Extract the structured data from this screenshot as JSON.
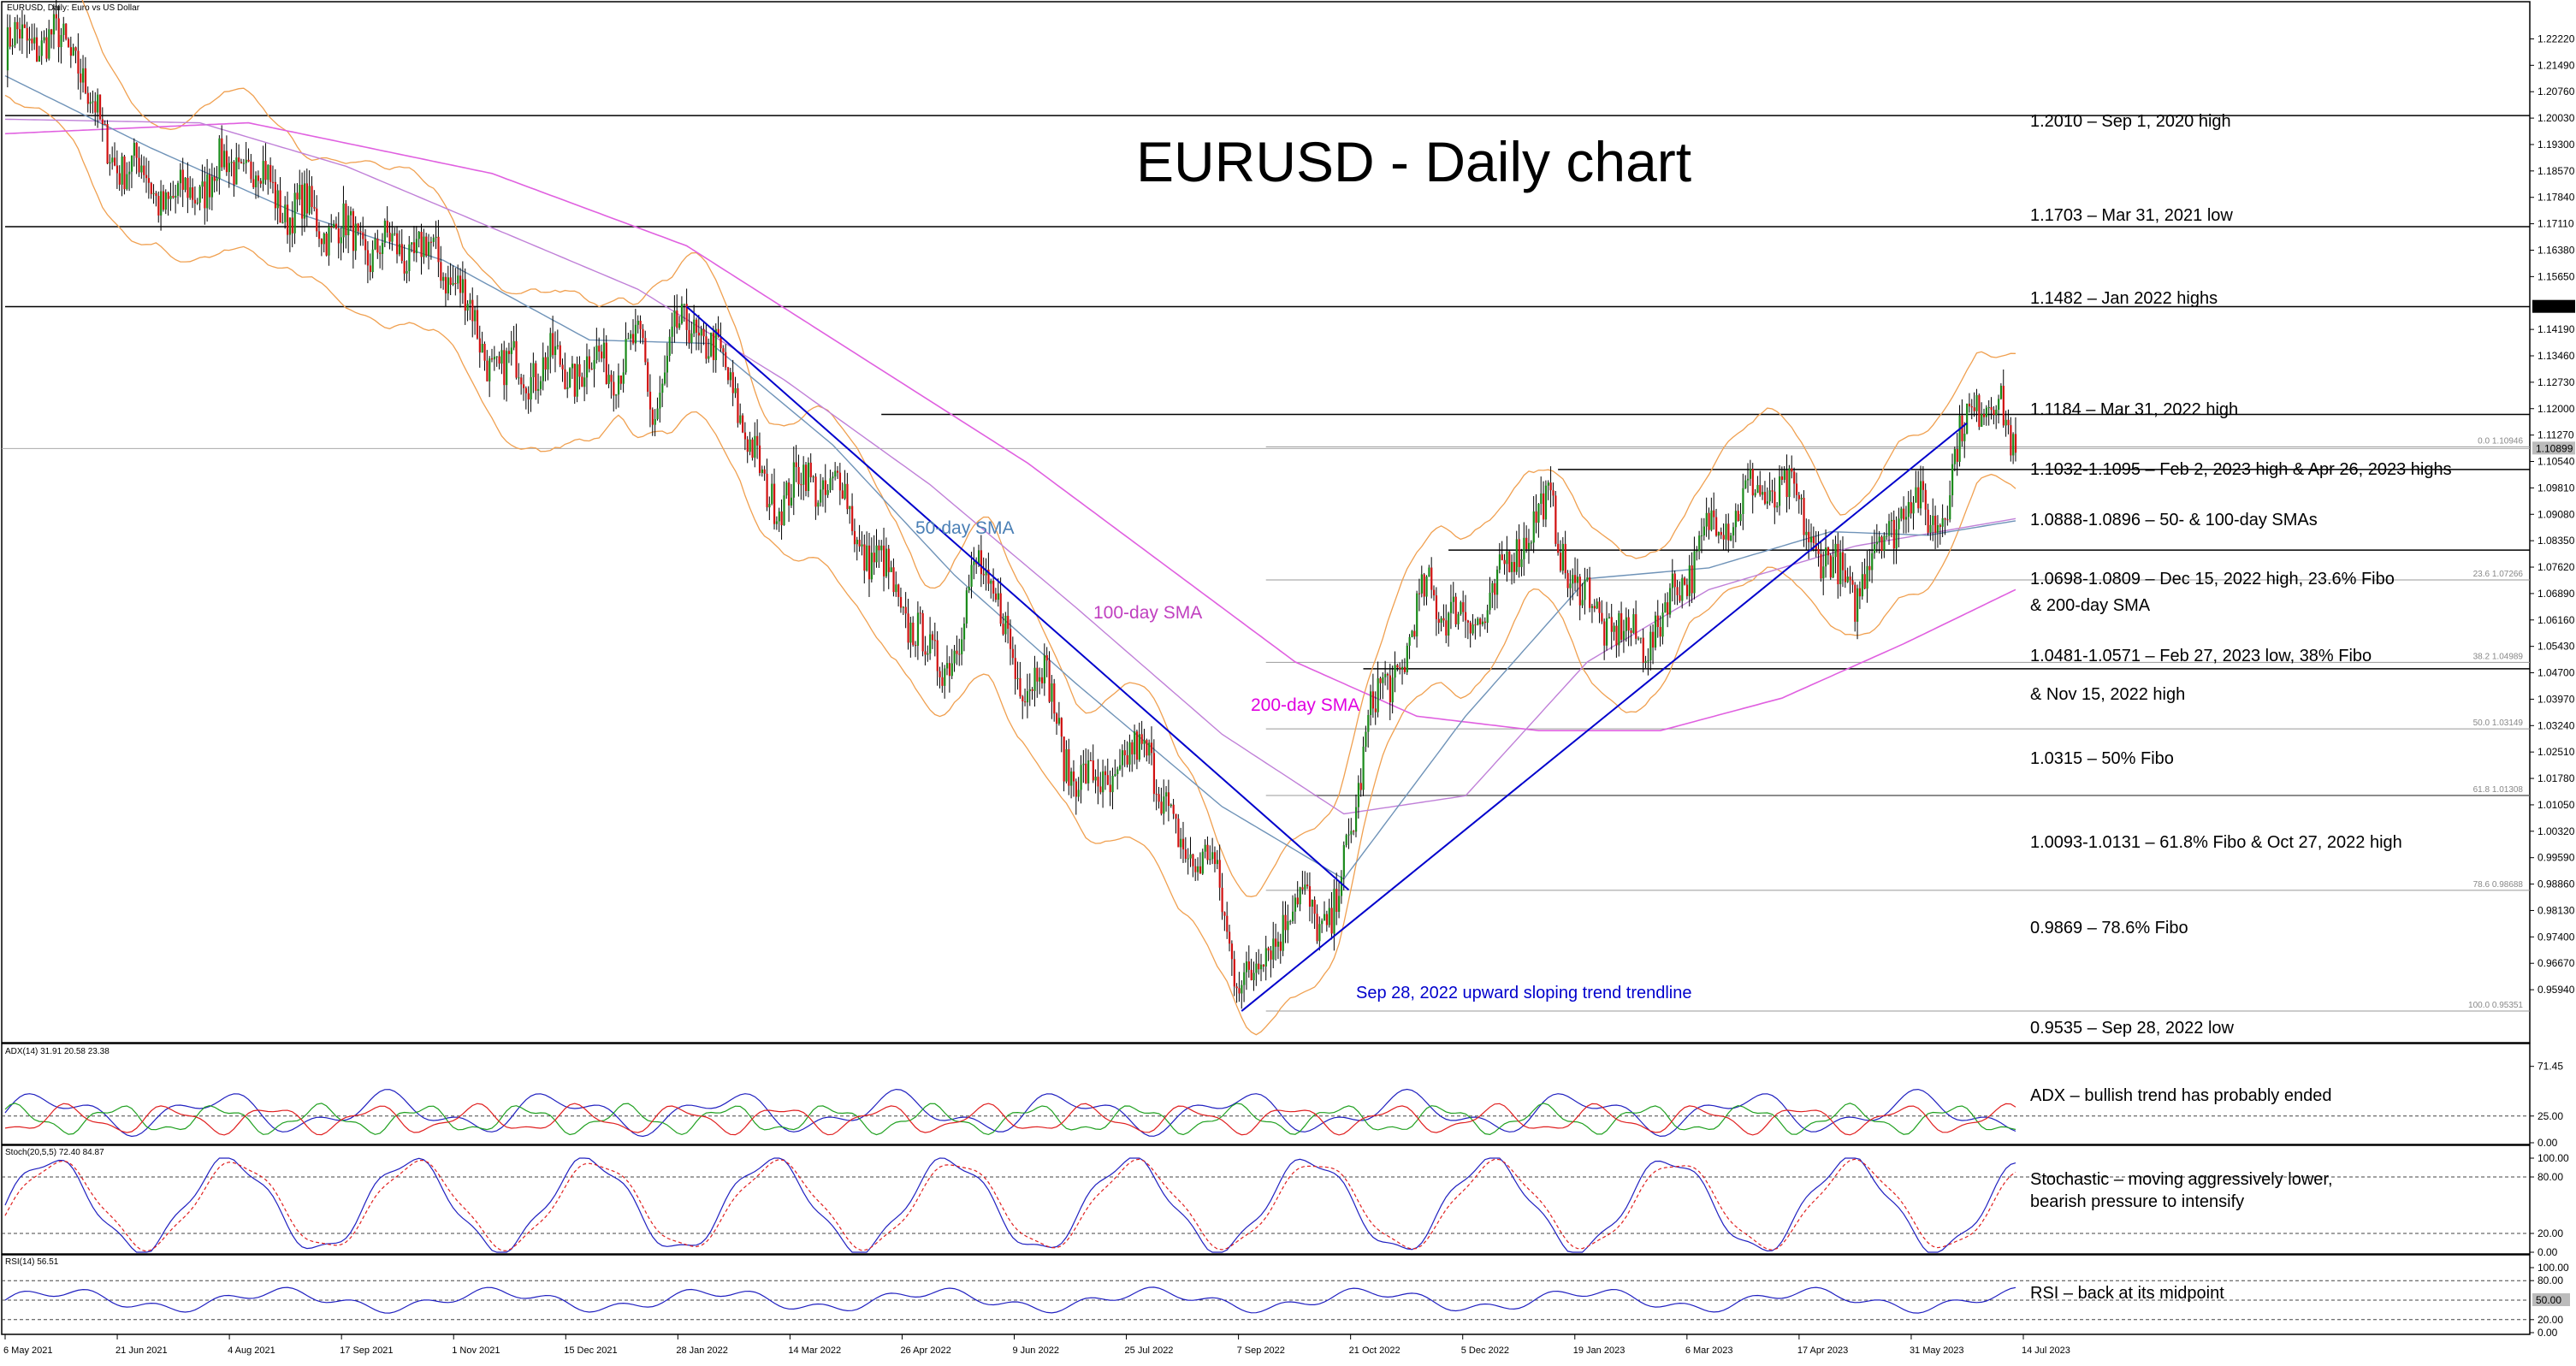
{
  "chart_data": {
    "type": "candlestick",
    "symbol_header": "EURUSD, Daily: Euro vs US Dollar",
    "title": "EURUSD - Daily chart",
    "ylim": [
      0.945,
      1.232
    ],
    "price_ticks": [
      "1.22220",
      "1.21490",
      "1.20760",
      "1.20030",
      "1.19300",
      "1.18570",
      "1.17840",
      "1.17110",
      "1.16380",
      "1.15650",
      "1.14190",
      "1.13460",
      "1.12730",
      "1.12000",
      "1.11270",
      "1.10540",
      "1.09810",
      "1.09080",
      "1.08350",
      "1.07620",
      "1.06890",
      "1.06160",
      "1.05430",
      "1.04700",
      "1.03970",
      "1.03240",
      "1.02510",
      "1.01780",
      "1.01050",
      "1.00320",
      "0.99590",
      "0.98860",
      "0.98130",
      "0.97400",
      "0.96670",
      "0.95940"
    ],
    "highlight_ticks": [
      {
        "label": "1.14815",
        "value": 1.14815
      },
      {
        "label": "1.10899",
        "value": 1.10899
      }
    ],
    "date_ticks": [
      "6 May 2021",
      "21 Jun 2021",
      "4 Aug 2021",
      "17 Sep 2021",
      "1 Nov 2021",
      "15 Dec 2021",
      "28 Jan 2022",
      "14 Mar 2022",
      "26 Apr 2022",
      "9 Jun 2022",
      "25 Jul 2022",
      "7 Sep 2022",
      "21 Oct 2022",
      "5 Dec 2022",
      "19 Jan 2023",
      "6 Mar 2023",
      "17 Apr 2023",
      "31 May 2023",
      "14 Jul 2023"
    ],
    "levels": [
      {
        "label": "1.2010 – Sep 1, 2020 high",
        "value": 1.201,
        "start_index": 0
      },
      {
        "label": "1.1703 – Mar 31, 2021 low",
        "value": 1.1703,
        "start_index": 0
      },
      {
        "label": "1.1482 – Jan 2022 highs",
        "value": 1.1482,
        "start_index": 0
      },
      {
        "label": "1.1184 – Mar 31, 2022 high",
        "value": 1.1184,
        "start_index": 360
      },
      {
        "label": "1.1032-1.1095 – Feb 2, 2023 high & Apr 26, 2023 highs",
        "value": 1.1032,
        "start_index": 638
      },
      {
        "label": "1.0888-1.0896 – 50- & 100-day SMAs",
        "value": 1.0888,
        "start_index": null
      },
      {
        "label": "1.0698-1.0809 – Dec 15, 2022 high, 23.6% Fibo",
        "label2": "& 200-day SMA",
        "value": 1.0809,
        "start_index": 593
      },
      {
        "label": "1.0481-1.0571 – Feb 27, 2023 low, 38% Fibo",
        "label2": "& Nov 15, 2022 high",
        "value": 1.0481,
        "start_index": 558
      },
      {
        "label": "1.0315 – 50% Fibo",
        "value": 1.0315,
        "start_index": null
      },
      {
        "label": "1.0093-1.0131 – 61.8% Fibo & Oct 27, 2022 high",
        "value": 1.0131,
        "start_index": 538
      },
      {
        "label": "0.9869 – 78.6% Fibo",
        "value": 0.9869,
        "start_index": null
      },
      {
        "label": "0.9535 – Sep 28, 2022 low",
        "value": 0.9535,
        "start_index": null
      }
    ],
    "fibo": [
      {
        "label": "0.0 1.10946",
        "value": 1.10946
      },
      {
        "label": "23.6 1.07266",
        "value": 1.07266
      },
      {
        "label": "38.2 1.04989",
        "value": 1.04989
      },
      {
        "label": "50.0 1.03149",
        "value": 1.03149
      },
      {
        "label": "61.8 1.01308",
        "value": 1.01308
      },
      {
        "label": "78.6 0.98688",
        "value": 0.98688
      },
      {
        "label": "100.0 0.95351",
        "value": 0.95351
      }
    ],
    "annotations": [
      {
        "text": "50-day SMA",
        "color": "#4a7fb5"
      },
      {
        "text": "100-day SMA",
        "color": "#c040c0"
      },
      {
        "text": "200-day SMA",
        "color": "#e000e0"
      },
      {
        "text": "Sep 28, 2022 upward sloping trend trendline",
        "color": "#0000cc"
      }
    ],
    "trendlines": [
      {
        "name": "downtrend",
        "from": {
          "index": 280,
          "price": 1.1482
        },
        "to": {
          "index": 552,
          "price": 0.987
        }
      },
      {
        "name": "uptrend",
        "from": {
          "index": 508,
          "price": 0.9535
        },
        "to": {
          "index": 806,
          "price": 1.116
        }
      }
    ],
    "ohlc_anchors": [
      [
        0,
        1.219
      ],
      [
        12,
        1.223
      ],
      [
        30,
        1.218
      ],
      [
        40,
        1.193
      ],
      [
        55,
        1.185
      ],
      [
        70,
        1.176
      ],
      [
        85,
        1.185
      ],
      [
        100,
        1.188
      ],
      [
        115,
        1.176
      ],
      [
        130,
        1.172
      ],
      [
        150,
        1.164
      ],
      [
        170,
        1.164
      ],
      [
        185,
        1.157
      ],
      [
        195,
        1.138
      ],
      [
        205,
        1.13
      ],
      [
        220,
        1.132
      ],
      [
        235,
        1.131
      ],
      [
        250,
        1.133
      ],
      [
        262,
        1.136
      ],
      [
        266,
        1.119
      ],
      [
        275,
        1.138
      ],
      [
        282,
        1.145
      ],
      [
        288,
        1.138
      ],
      [
        300,
        1.125
      ],
      [
        312,
        1.095
      ],
      [
        330,
        1.1
      ],
      [
        343,
        1.098
      ],
      [
        350,
        1.085
      ],
      [
        365,
        1.07
      ],
      [
        380,
        1.05
      ],
      [
        392,
        1.055
      ],
      [
        400,
        1.08
      ],
      [
        408,
        1.065
      ],
      [
        415,
        1.045
      ],
      [
        425,
        1.05
      ],
      [
        435,
        1.025
      ],
      [
        445,
        1.015
      ],
      [
        460,
        1.02
      ],
      [
        470,
        1.028
      ],
      [
        480,
        1.0
      ],
      [
        495,
        0.995
      ],
      [
        505,
        0.968
      ],
      [
        512,
        0.96
      ],
      [
        520,
        0.975
      ],
      [
        535,
        0.985
      ],
      [
        545,
        0.975
      ],
      [
        552,
        1.0
      ],
      [
        560,
        1.035
      ],
      [
        570,
        1.045
      ],
      [
        585,
        1.07
      ],
      [
        600,
        1.06
      ],
      [
        612,
        1.068
      ],
      [
        625,
        1.088
      ],
      [
        635,
        1.092
      ],
      [
        645,
        1.07
      ],
      [
        660,
        1.06
      ],
      [
        668,
        1.055
      ],
      [
        680,
        1.06
      ],
      [
        690,
        1.075
      ],
      [
        705,
        1.09
      ],
      [
        715,
        1.095
      ],
      [
        730,
        1.098
      ],
      [
        740,
        1.088
      ],
      [
        750,
        1.075
      ],
      [
        760,
        1.07
      ],
      [
        772,
        1.085
      ],
      [
        780,
        1.095
      ],
      [
        790,
        1.09
      ],
      [
        798,
        1.095
      ],
      [
        806,
        1.118
      ],
      [
        812,
        1.125
      ],
      [
        818,
        1.12
      ],
      [
        826,
        1.109
      ]
    ],
    "sma50_anchors": [
      [
        0,
        1.212
      ],
      [
        60,
        1.192
      ],
      [
        120,
        1.174
      ],
      [
        180,
        1.161
      ],
      [
        240,
        1.139
      ],
      [
        290,
        1.138
      ],
      [
        340,
        1.11
      ],
      [
        390,
        1.074
      ],
      [
        440,
        1.044
      ],
      [
        500,
        1.01
      ],
      [
        550,
        0.99
      ],
      [
        600,
        1.035
      ],
      [
        650,
        1.073
      ],
      [
        700,
        1.076
      ],
      [
        750,
        1.086
      ],
      [
        790,
        1.085
      ],
      [
        826,
        1.089
      ]
    ],
    "sma100_anchors": [
      [
        0,
        1.2
      ],
      [
        80,
        1.199
      ],
      [
        140,
        1.187
      ],
      [
        200,
        1.17
      ],
      [
        260,
        1.153
      ],
      [
        320,
        1.128
      ],
      [
        380,
        1.099
      ],
      [
        440,
        1.065
      ],
      [
        500,
        1.03
      ],
      [
        550,
        1.008
      ],
      [
        600,
        1.013
      ],
      [
        650,
        1.05
      ],
      [
        700,
        1.07
      ],
      [
        760,
        1.082
      ],
      [
        826,
        1.0896
      ]
    ],
    "sma200_anchors": [
      [
        0,
        1.196
      ],
      [
        100,
        1.199
      ],
      [
        200,
        1.185
      ],
      [
        280,
        1.165
      ],
      [
        350,
        1.135
      ],
      [
        420,
        1.105
      ],
      [
        480,
        1.075
      ],
      [
        530,
        1.05
      ],
      [
        580,
        1.035
      ],
      [
        630,
        1.031
      ],
      [
        680,
        1.031
      ],
      [
        730,
        1.04
      ],
      [
        780,
        1.055
      ],
      [
        826,
        1.07
      ]
    ],
    "indicators": [
      {
        "name": "ADX",
        "header": "ADX(14) 31.91 20.58 23.38",
        "ticks": [
          "71.45",
          "25.00",
          "0.00"
        ],
        "ylim": [
          0,
          80
        ],
        "note": "ADX – bullish trend has probably ended",
        "series": [
          {
            "name": "ADX",
            "color": "#2020c0"
          },
          {
            "name": "+DI",
            "color": "#20a020"
          },
          {
            "name": "-DI",
            "color": "#e02020"
          }
        ]
      },
      {
        "name": "Stochastic",
        "header": "Stoch(20,5,5) 72.40 84.87",
        "ticks": [
          "100.00",
          "80.00",
          "20.00",
          "0.00"
        ],
        "ylim": [
          0,
          100
        ],
        "note": "Stochastic – moving aggressively lower,",
        "note2": "bearish pressure to intensify",
        "series": [
          {
            "name": "%K",
            "color": "#2020c0"
          },
          {
            "name": "%D",
            "color": "#e02020"
          }
        ]
      },
      {
        "name": "RSI",
        "header": "RSI(14) 56.51",
        "ticks": [
          "100.00",
          "80.00",
          "20.00",
          "0.00"
        ],
        "highlight_tick": "50.00",
        "ylim": [
          0,
          100
        ],
        "note": "RSI – back at its midpoint",
        "series": [
          {
            "name": "RSI",
            "color": "#2020c0"
          }
        ]
      }
    ]
  }
}
